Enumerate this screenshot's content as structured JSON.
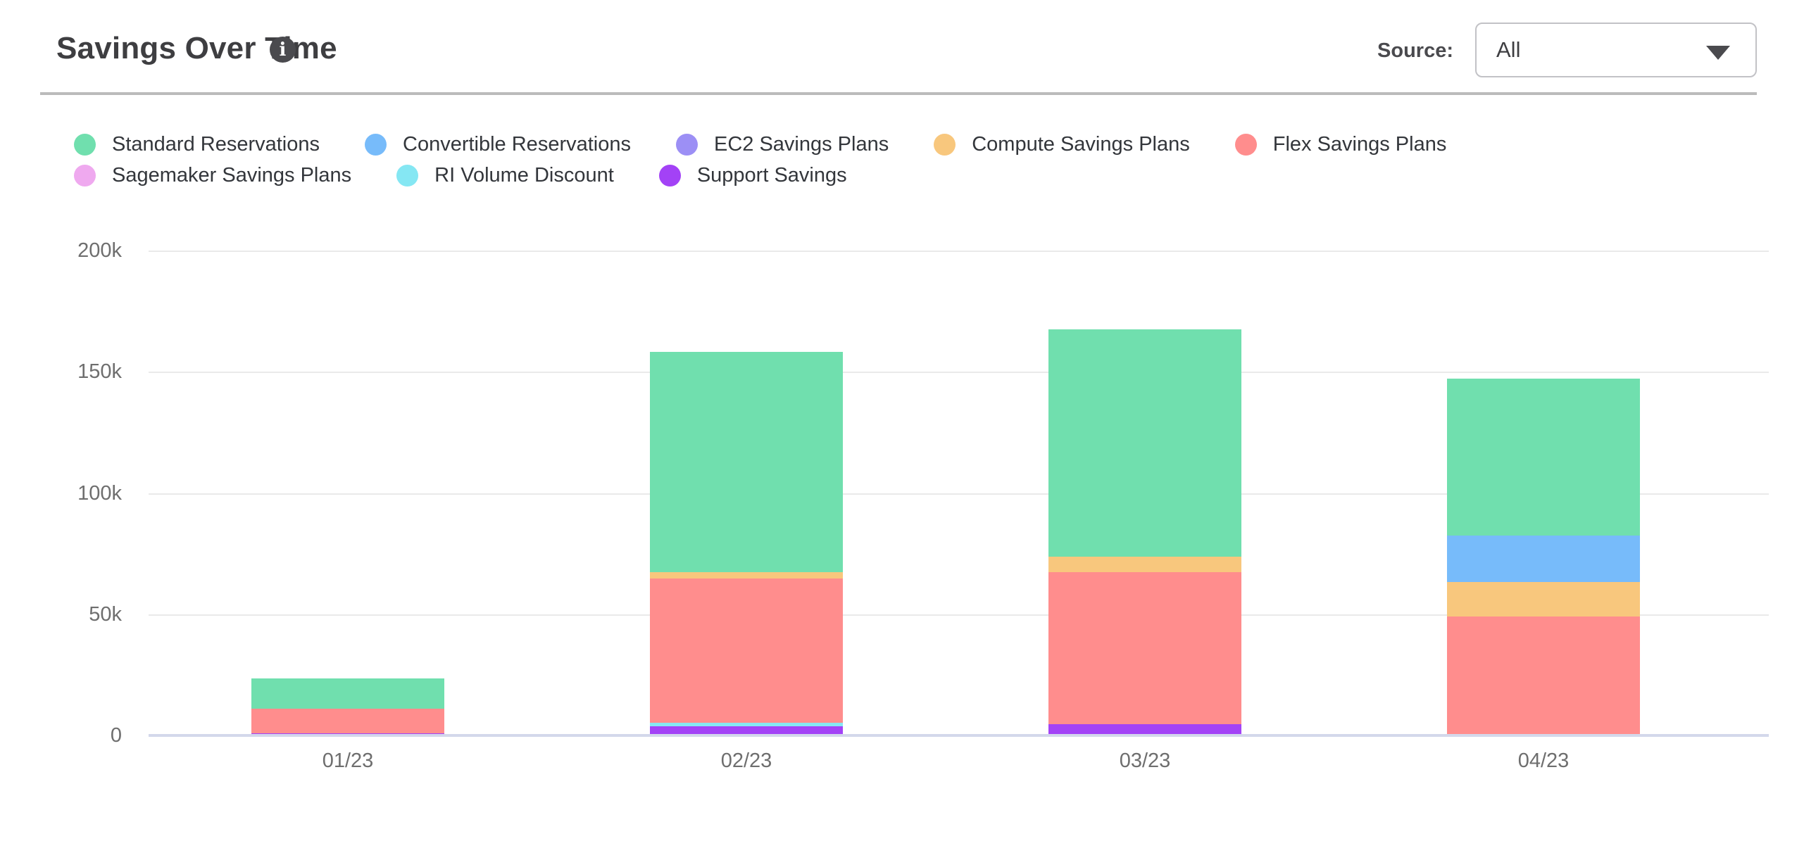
{
  "header": {
    "title": "Savings Over Time",
    "info_icon_glyph": "i",
    "source_label": "Source:",
    "source_value": "All"
  },
  "legend": {
    "rows": [
      [
        {
          "label": "Standard Reservations",
          "color": "#70dfae"
        },
        {
          "label": "Convertible Reservations",
          "color": "#77bbfa"
        },
        {
          "label": "EC2 Savings Plans",
          "color": "#9c8ff5"
        },
        {
          "label": "Compute Savings Plans",
          "color": "#f8c77d"
        },
        {
          "label": "Flex Savings Plans",
          "color": "#ff8d8d"
        }
      ],
      [
        {
          "label": "Sagemaker Savings Plans",
          "color": "#efa9ef"
        },
        {
          "label": "RI Volume Discount",
          "color": "#85e7f3"
        },
        {
          "label": "Support Savings",
          "color": "#a342f6"
        }
      ]
    ]
  },
  "chart_data": {
    "type": "bar",
    "stacked": true,
    "title": "Savings Over Time",
    "xlabel": "",
    "ylabel": "",
    "unit": "k",
    "categories": [
      "01/23",
      "02/23",
      "03/23",
      "04/23"
    ],
    "series": [
      {
        "name": "Standard Reservations",
        "color": "#70dfae",
        "values_k": [
          12.4,
          90.6,
          93.8,
          64.7
        ]
      },
      {
        "name": "Convertible Reservations",
        "color": "#77bbfa",
        "values_k": [
          0,
          0,
          0,
          19.2
        ]
      },
      {
        "name": "EC2 Savings Plans",
        "color": "#9c8ff5",
        "values_k": [
          0,
          0,
          0,
          0
        ]
      },
      {
        "name": "Compute Savings Plans",
        "color": "#f8c77d",
        "values_k": [
          0,
          2.9,
          6.4,
          14.2
        ]
      },
      {
        "name": "Flex Savings Plans",
        "color": "#ff8d8d",
        "values_k": [
          10.2,
          59.5,
          62.7,
          49.1
        ]
      },
      {
        "name": "Sagemaker Savings Plans",
        "color": "#efa9ef",
        "values_k": [
          0,
          0,
          0,
          0
        ]
      },
      {
        "name": "RI Volume Discount",
        "color": "#85e7f3",
        "values_k": [
          0,
          1.2,
          0,
          0
        ]
      },
      {
        "name": "Support Savings",
        "color": "#a342f6",
        "values_k": [
          0.8,
          3.9,
          4.6,
          0
        ]
      }
    ],
    "stack_order_bottom_to_top": [
      "Support Savings",
      "RI Volume Discount",
      "Sagemaker Savings Plans",
      "Flex Savings Plans",
      "Compute Savings Plans",
      "EC2 Savings Plans",
      "Convertible Reservations",
      "Standard Reservations"
    ],
    "ylim_k": [
      0,
      200
    ],
    "yticks": [
      {
        "value_k": 200,
        "label": "200k"
      },
      {
        "value_k": 150,
        "label": "150k"
      },
      {
        "value_k": 100,
        "label": "100k"
      },
      {
        "value_k": 50,
        "label": "50k"
      },
      {
        "value_k": 0,
        "label": "0"
      }
    ],
    "grid": true,
    "legend_position": "top"
  }
}
